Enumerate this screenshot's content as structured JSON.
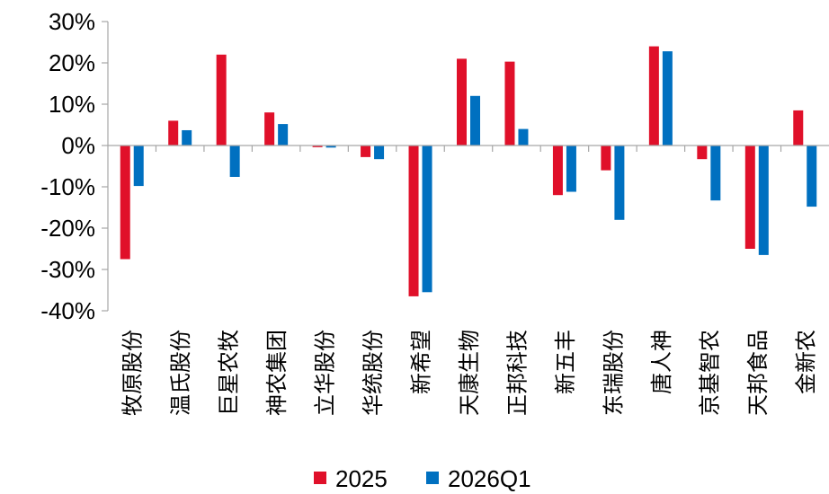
{
  "chart_data": {
    "type": "bar",
    "categories": [
      "牧原股份",
      "温氏股份",
      "巨星农牧",
      "神农集团",
      "立华股份",
      "华统股份",
      "新希望",
      "天康生物",
      "正邦科技",
      "新五丰",
      "东瑞股份",
      "唐人神",
      "京基智农",
      "天邦食品",
      "金新农"
    ],
    "series": [
      {
        "name": "2025",
        "color": "#e0102a",
        "values": [
          -27.5,
          6.0,
          22.0,
          8.0,
          -0.4,
          -2.8,
          -36.5,
          21.0,
          20.3,
          -12.0,
          -6.0,
          24.0,
          -3.3,
          -25.0,
          8.5
        ]
      },
      {
        "name": "2026Q1",
        "color": "#0070c0",
        "values": [
          -9.8,
          3.7,
          -7.6,
          5.2,
          -0.5,
          -3.3,
          -35.5,
          12.0,
          4.0,
          -11.2,
          -18.0,
          22.8,
          -13.3,
          -26.5,
          -14.8
        ]
      }
    ],
    "y_ticks": [
      "30%",
      "20%",
      "10%",
      "0%",
      "-10%",
      "-20%",
      "-30%",
      "-40%"
    ],
    "ylim": [
      -40,
      30
    ],
    "title": "",
    "xlabel": "",
    "ylabel": "",
    "legend": "bottom-center",
    "grid": false
  }
}
